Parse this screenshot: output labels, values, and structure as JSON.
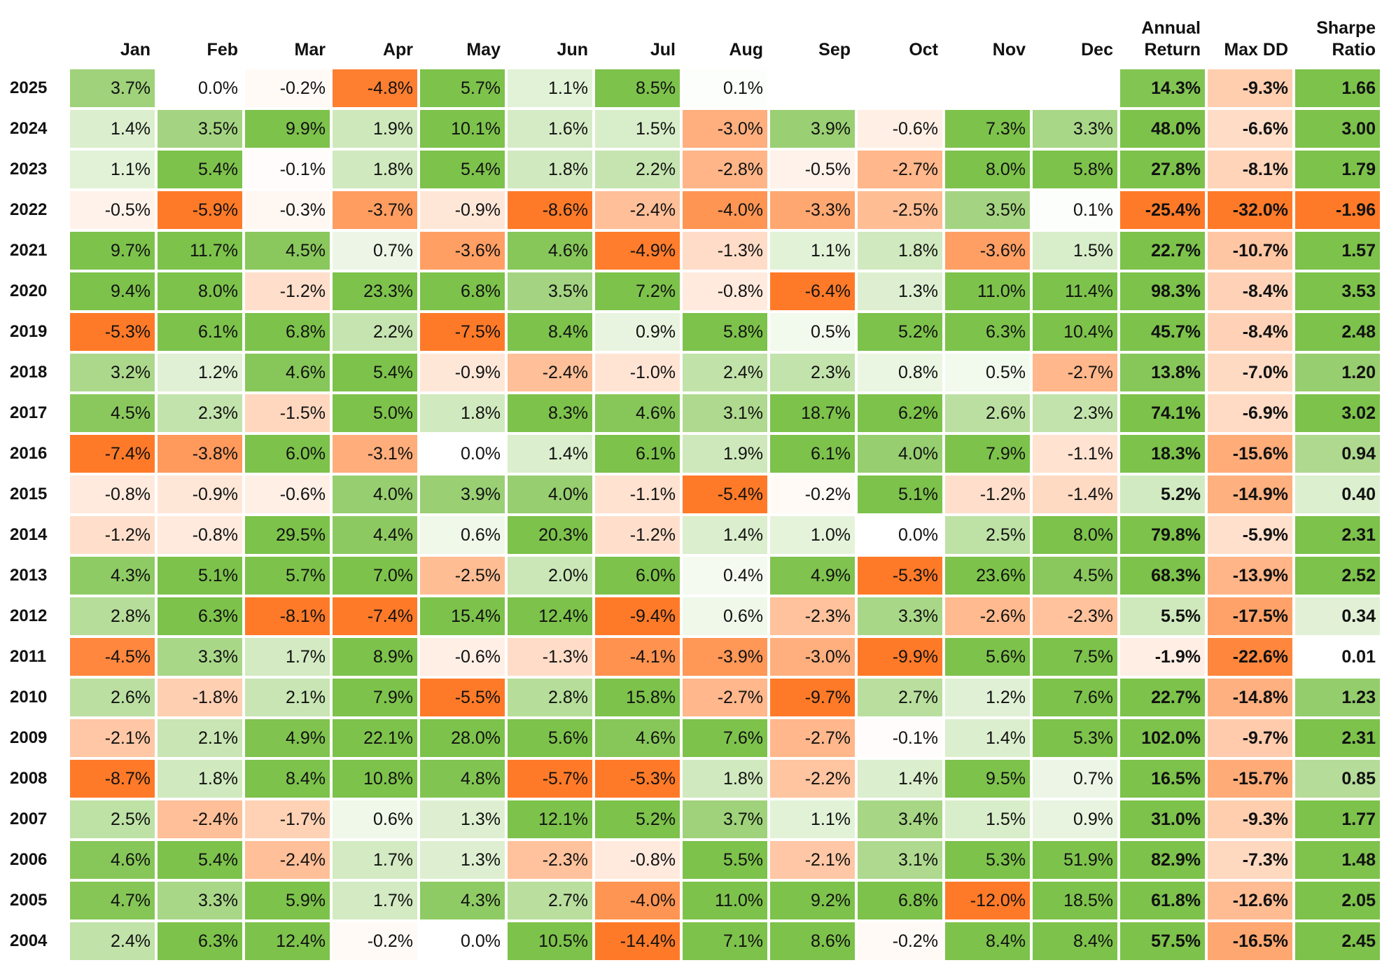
{
  "table": {
    "columns": [
      "Jan",
      "Feb",
      "Mar",
      "Apr",
      "May",
      "Jun",
      "Jul",
      "Aug",
      "Sep",
      "Oct",
      "Nov",
      "Dec",
      "Annual Return",
      "Max DD",
      "Sharpe Ratio"
    ],
    "rows": [
      {
        "year": "2025",
        "cells": [
          "3.7%",
          "0.0%",
          "-0.2%",
          "-4.8%",
          "5.7%",
          "1.1%",
          "8.5%",
          "0.1%",
          null,
          null,
          null,
          null,
          "14.3%",
          "-9.3%",
          "1.66"
        ]
      },
      {
        "year": "2024",
        "cells": [
          "1.4%",
          "3.5%",
          "9.9%",
          "1.9%",
          "10.1%",
          "1.6%",
          "1.5%",
          "-3.0%",
          "3.9%",
          "-0.6%",
          "7.3%",
          "3.3%",
          "48.0%",
          "-6.6%",
          "3.00"
        ]
      },
      {
        "year": "2023",
        "cells": [
          "1.1%",
          "5.4%",
          "-0.1%",
          "1.8%",
          "5.4%",
          "1.8%",
          "2.2%",
          "-2.8%",
          "-0.5%",
          "-2.7%",
          "8.0%",
          "5.8%",
          "27.8%",
          "-8.1%",
          "1.79"
        ]
      },
      {
        "year": "2022",
        "cells": [
          "-0.5%",
          "-5.9%",
          "-0.3%",
          "-3.7%",
          "-0.9%",
          "-8.6%",
          "-2.4%",
          "-4.0%",
          "-3.3%",
          "-2.5%",
          "3.5%",
          "0.1%",
          "-25.4%",
          "-32.0%",
          "-1.96"
        ]
      },
      {
        "year": "2021",
        "cells": [
          "9.7%",
          "11.7%",
          "4.5%",
          "0.7%",
          "-3.6%",
          "4.6%",
          "-4.9%",
          "-1.3%",
          "1.1%",
          "1.8%",
          "-3.6%",
          "1.5%",
          "22.7%",
          "-10.7%",
          "1.57"
        ]
      },
      {
        "year": "2020",
        "cells": [
          "9.4%",
          "8.0%",
          "-1.2%",
          "23.3%",
          "6.8%",
          "3.5%",
          "7.2%",
          "-0.8%",
          "-6.4%",
          "1.3%",
          "11.0%",
          "11.4%",
          "98.3%",
          "-8.4%",
          "3.53"
        ]
      },
      {
        "year": "2019",
        "cells": [
          "-5.3%",
          "6.1%",
          "6.8%",
          "2.2%",
          "-7.5%",
          "8.4%",
          "0.9%",
          "5.8%",
          "0.5%",
          "5.2%",
          "6.3%",
          "10.4%",
          "45.7%",
          "-8.4%",
          "2.48"
        ]
      },
      {
        "year": "2018",
        "cells": [
          "3.2%",
          "1.2%",
          "4.6%",
          "5.4%",
          "-0.9%",
          "-2.4%",
          "-1.0%",
          "2.4%",
          "2.3%",
          "0.8%",
          "0.5%",
          "-2.7%",
          "13.8%",
          "-7.0%",
          "1.20"
        ]
      },
      {
        "year": "2017",
        "cells": [
          "4.5%",
          "2.3%",
          "-1.5%",
          "5.0%",
          "1.8%",
          "8.3%",
          "4.6%",
          "3.1%",
          "18.7%",
          "6.2%",
          "2.6%",
          "2.3%",
          "74.1%",
          "-6.9%",
          "3.02"
        ]
      },
      {
        "year": "2016",
        "cells": [
          "-7.4%",
          "-3.8%",
          "6.0%",
          "-3.1%",
          "0.0%",
          "1.4%",
          "6.1%",
          "1.9%",
          "6.1%",
          "4.0%",
          "7.9%",
          "-1.1%",
          "18.3%",
          "-15.6%",
          "0.94"
        ]
      },
      {
        "year": "2015",
        "cells": [
          "-0.8%",
          "-0.9%",
          "-0.6%",
          "4.0%",
          "3.9%",
          "4.0%",
          "-1.1%",
          "-5.4%",
          "-0.2%",
          "5.1%",
          "-1.2%",
          "-1.4%",
          "5.2%",
          "-14.9%",
          "0.40"
        ]
      },
      {
        "year": "2014",
        "cells": [
          "-1.2%",
          "-0.8%",
          "29.5%",
          "4.4%",
          "0.6%",
          "20.3%",
          "-1.2%",
          "1.4%",
          "1.0%",
          "0.0%",
          "2.5%",
          "8.0%",
          "79.8%",
          "-5.9%",
          "2.31"
        ]
      },
      {
        "year": "2013",
        "cells": [
          "4.3%",
          "5.1%",
          "5.7%",
          "7.0%",
          "-2.5%",
          "2.0%",
          "6.0%",
          "0.4%",
          "4.9%",
          "-5.3%",
          "23.6%",
          "4.5%",
          "68.3%",
          "-13.9%",
          "2.52"
        ]
      },
      {
        "year": "2012",
        "cells": [
          "2.8%",
          "6.3%",
          "-8.1%",
          "-7.4%",
          "15.4%",
          "12.4%",
          "-9.4%",
          "0.6%",
          "-2.3%",
          "3.3%",
          "-2.6%",
          "-2.3%",
          "5.5%",
          "-17.5%",
          "0.34"
        ]
      },
      {
        "year": "2011",
        "cells": [
          "-4.5%",
          "3.3%",
          "1.7%",
          "8.9%",
          "-0.6%",
          "-1.3%",
          "-4.1%",
          "-3.9%",
          "-3.0%",
          "-9.9%",
          "5.6%",
          "7.5%",
          "-1.9%",
          "-22.6%",
          "0.01"
        ]
      },
      {
        "year": "2010",
        "cells": [
          "2.6%",
          "-1.8%",
          "2.1%",
          "7.9%",
          "-5.5%",
          "2.8%",
          "15.8%",
          "-2.7%",
          "-9.7%",
          "2.7%",
          "1.2%",
          "7.6%",
          "22.7%",
          "-14.8%",
          "1.23"
        ]
      },
      {
        "year": "2009",
        "cells": [
          "-2.1%",
          "2.1%",
          "4.9%",
          "22.1%",
          "28.0%",
          "5.6%",
          "4.6%",
          "7.6%",
          "-2.7%",
          "-0.1%",
          "1.4%",
          "5.3%",
          "102.0%",
          "-9.7%",
          "2.31"
        ]
      },
      {
        "year": "2008",
        "cells": [
          "-8.7%",
          "1.8%",
          "8.4%",
          "10.8%",
          "4.8%",
          "-5.7%",
          "-5.3%",
          "1.8%",
          "-2.2%",
          "1.4%",
          "9.5%",
          "0.7%",
          "16.5%",
          "-15.7%",
          "0.85"
        ]
      },
      {
        "year": "2007",
        "cells": [
          "2.5%",
          "-2.4%",
          "-1.7%",
          "0.6%",
          "1.3%",
          "12.1%",
          "5.2%",
          "3.7%",
          "1.1%",
          "3.4%",
          "1.5%",
          "0.9%",
          "31.0%",
          "-9.3%",
          "1.77"
        ]
      },
      {
        "year": "2006",
        "cells": [
          "4.6%",
          "5.4%",
          "-2.4%",
          "1.7%",
          "1.3%",
          "-2.3%",
          "-0.8%",
          "5.5%",
          "-2.1%",
          "3.1%",
          "5.3%",
          "51.9%",
          "82.9%",
          "-7.3%",
          "1.48"
        ]
      },
      {
        "year": "2005",
        "cells": [
          "4.7%",
          "3.3%",
          "5.9%",
          "1.7%",
          "4.3%",
          "2.7%",
          "-4.0%",
          "11.0%",
          "9.2%",
          "6.8%",
          "-12.0%",
          "18.5%",
          "61.8%",
          "-12.6%",
          "2.05"
        ]
      },
      {
        "year": "2004",
        "cells": [
          "2.4%",
          "6.3%",
          "12.4%",
          "-0.2%",
          "0.0%",
          "10.5%",
          "-14.4%",
          "7.1%",
          "8.6%",
          "-0.2%",
          "8.4%",
          "8.4%",
          "57.5%",
          "-16.5%",
          "2.45"
        ]
      }
    ]
  }
}
